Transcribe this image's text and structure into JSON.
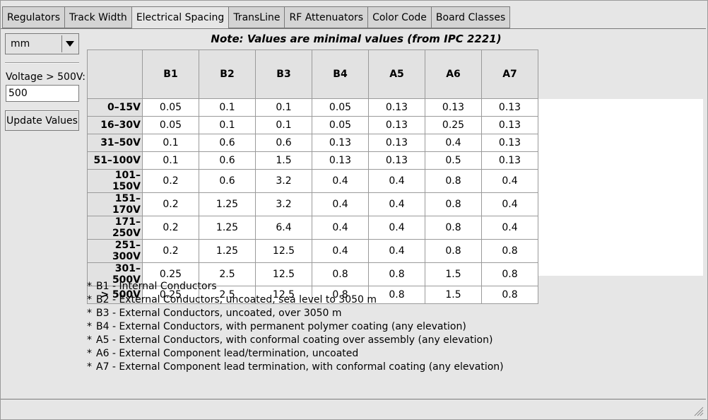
{
  "tabs": [
    {
      "label": "Regulators",
      "active": false
    },
    {
      "label": "Track Width",
      "active": false
    },
    {
      "label": "Electrical Spacing",
      "active": true
    },
    {
      "label": "TransLine",
      "active": false
    },
    {
      "label": "RF Attenuators",
      "active": false
    },
    {
      "label": "Color Code",
      "active": false
    },
    {
      "label": "Board Classes",
      "active": false
    }
  ],
  "controls": {
    "unit_value": "mm",
    "voltage_label": "Voltage > 500V:",
    "voltage_value": "500",
    "update_label": "Update Values"
  },
  "note": "Note: Values are minimal values (from IPC 2221)",
  "table": {
    "columns": [
      "B1",
      "B2",
      "B3",
      "B4",
      "A5",
      "A6",
      "A7"
    ],
    "rows": [
      {
        "label": "0–15V",
        "values": [
          "0.05",
          "0.1",
          "0.1",
          "0.05",
          "0.13",
          "0.13",
          "0.13"
        ]
      },
      {
        "label": "16–30V",
        "values": [
          "0.05",
          "0.1",
          "0.1",
          "0.05",
          "0.13",
          "0.25",
          "0.13"
        ]
      },
      {
        "label": "31–50V",
        "values": [
          "0.1",
          "0.6",
          "0.6",
          "0.13",
          "0.13",
          "0.4",
          "0.13"
        ]
      },
      {
        "label": "51–100V",
        "values": [
          "0.1",
          "0.6",
          "1.5",
          "0.13",
          "0.13",
          "0.5",
          "0.13"
        ]
      },
      {
        "label": "101–150V",
        "values": [
          "0.2",
          "0.6",
          "3.2",
          "0.4",
          "0.4",
          "0.8",
          "0.4"
        ]
      },
      {
        "label": "151–170V",
        "values": [
          "0.2",
          "1.25",
          "3.2",
          "0.4",
          "0.4",
          "0.8",
          "0.4"
        ]
      },
      {
        "label": "171–250V",
        "values": [
          "0.2",
          "1.25",
          "6.4",
          "0.4",
          "0.4",
          "0.8",
          "0.4"
        ]
      },
      {
        "label": "251–300V",
        "values": [
          "0.2",
          "1.25",
          "12.5",
          "0.4",
          "0.4",
          "0.8",
          "0.8"
        ]
      },
      {
        "label": "301–500V",
        "values": [
          "0.25",
          "2.5",
          "12.5",
          "0.8",
          "0.8",
          "1.5",
          "0.8"
        ]
      },
      {
        "label": "> 500V",
        "values": [
          "0.25",
          "2.5",
          "12.5",
          "0.8",
          "0.8",
          "1.5",
          "0.8"
        ]
      }
    ]
  },
  "legend": {
    "bullet": "*",
    "items": [
      "B1 - Internal Conductors",
      "B2 - External Conductors, uncoated, sea level to 3050 m",
      "B3 - External Conductors, uncoated, over 3050 m",
      "B4 - External Conductors, with permanent polymer coating (any elevation)",
      "A5 - External Conductors, with conformal coating over assembly (any elevation)",
      "A6 - External Component lead/termination, uncoated",
      "A7 - External Component lead termination, with conformal coating (any elevation)"
    ]
  },
  "icons": {
    "unit_dropdown": "triangle-down-icon",
    "resize_grip": "resize-grip-icon"
  }
}
